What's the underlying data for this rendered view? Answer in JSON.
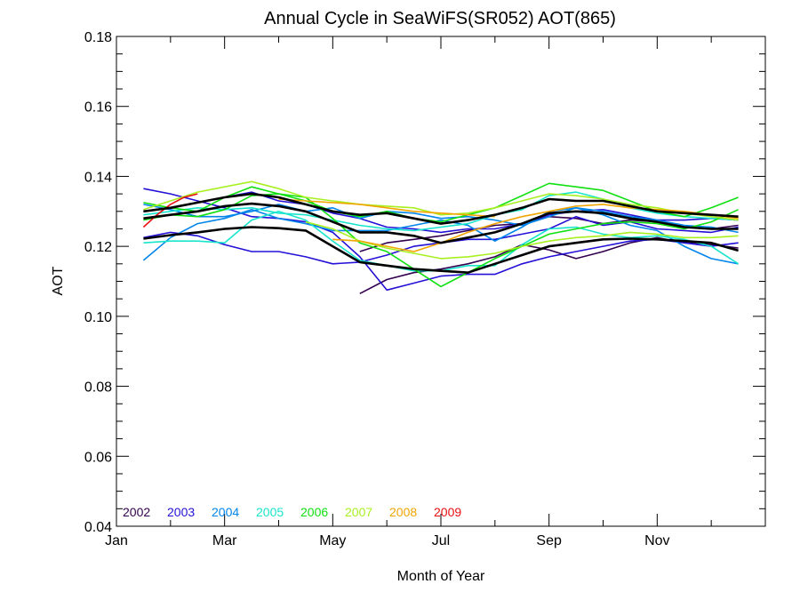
{
  "chart_data": {
    "type": "line",
    "title": "Annual Cycle in SeaWiFS(SR052) AOT(865)",
    "xlabel": "Month of Year",
    "ylabel": "AOT",
    "xlim": [
      1,
      13
    ],
    "ylim": [
      0.04,
      0.18
    ],
    "x_tick_labels": [
      {
        "value": 1,
        "label": "Jan"
      },
      {
        "value": 3,
        "label": "Mar"
      },
      {
        "value": 5,
        "label": "May"
      },
      {
        "value": 7,
        "label": "Jul"
      },
      {
        "value": 9,
        "label": "Sep"
      },
      {
        "value": 11,
        "label": "Nov"
      }
    ],
    "y_ticks": [
      0.04,
      0.06,
      0.08,
      0.1,
      0.12,
      0.14,
      0.16,
      0.18
    ],
    "y_tick_labels": [
      "0.04",
      "0.06",
      "0.08",
      "0.10",
      "0.12",
      "0.14",
      "0.16",
      "0.18"
    ],
    "legend_placement": "bottom-left",
    "series": [
      {
        "name": "2002",
        "color": "#330050",
        "lines": [
          {
            "x": [
              5.5,
              6.0,
              6.5,
              7.0,
              7.5,
              8.0,
              8.5,
              9.0,
              9.5,
              10.0,
              10.5,
              11.0,
              11.5,
              12.0,
              12.5
            ],
            "y": [
              0.1065,
              0.1105,
              0.1125,
              0.1135,
              0.115,
              0.117,
              0.1205,
              0.119,
              0.1165,
              0.1185,
              0.121,
              0.1225,
              0.121,
              0.1205,
              0.1195
            ]
          },
          {
            "x": [
              5.5,
              6.0,
              6.5,
              7.0,
              7.5,
              8.0,
              8.5,
              9.0,
              9.5,
              10.0,
              10.5,
              11.0,
              11.5,
              12.0,
              12.5
            ],
            "y": [
              0.1185,
              0.121,
              0.122,
              0.123,
              0.1245,
              0.126,
              0.1265,
              0.1285,
              0.128,
              0.1265,
              0.1275,
              0.127,
              0.1255,
              0.125,
              0.126
            ]
          }
        ]
      },
      {
        "name": "2003",
        "color": "#2410D6",
        "lines": [
          {
            "x": [
              1.5,
              2.0,
              2.5,
              3.0,
              3.5,
              4.0,
              4.5,
              5.0,
              5.5,
              6.0,
              6.5,
              7.0,
              7.5,
              8.0,
              8.5,
              9.0,
              9.5,
              10.0,
              10.5,
              11.0,
              11.5,
              12.0,
              12.5
            ],
            "y": [
              0.1365,
              0.135,
              0.133,
              0.131,
              0.1285,
              0.128,
              0.127,
              0.124,
              0.117,
              0.1075,
              0.1095,
              0.1115,
              0.112,
              0.112,
              0.115,
              0.117,
              0.1185,
              0.12,
              0.1215,
              0.122,
              0.121,
              0.12,
              0.121
            ]
          },
          {
            "x": [
              1.5,
              2.0,
              2.5,
              3.0,
              3.5,
              4.0,
              4.5,
              5.0,
              5.5,
              6.0,
              6.5,
              7.0,
              7.5,
              8.0,
              8.5,
              9.0,
              9.5,
              10.0,
              10.5,
              11.0,
              11.5,
              12.0,
              12.5
            ],
            "y": [
              0.1225,
              0.124,
              0.123,
              0.1205,
              0.1185,
              0.1185,
              0.117,
              0.115,
              0.1155,
              0.1175,
              0.12,
              0.121,
              0.122,
              0.122,
              0.1235,
              0.125,
              0.1285,
              0.126,
              0.127,
              0.125,
              0.1245,
              0.124,
              0.1255
            ]
          },
          {
            "x": [
              1.5,
              2.0,
              2.5,
              3.0,
              3.5,
              4.0,
              4.5,
              5.0,
              5.5,
              6.0,
              6.5,
              7.0,
              7.5,
              8.0,
              8.5,
              9.0,
              9.5,
              10.0,
              10.5,
              11.0,
              11.5,
              12.0,
              12.5
            ],
            "y": [
              0.13,
              0.131,
              0.1325,
              0.134,
              0.1355,
              0.133,
              0.132,
              0.1295,
              0.128,
              0.1255,
              0.125,
              0.124,
              0.125,
              0.125,
              0.1265,
              0.129,
              0.13,
              0.1305,
              0.129,
              0.1275,
              0.1275,
              0.128,
              0.1275
            ]
          }
        ]
      },
      {
        "name": "2004",
        "color": "#0085EA",
        "lines": [
          {
            "x": [
              1.5,
              2.0,
              2.5,
              3.0,
              3.5,
              4.0,
              4.5,
              5.0,
              5.5,
              6.0,
              6.5,
              7.0,
              7.5,
              8.0,
              8.5,
              9.0,
              9.5,
              10.0,
              10.5,
              11.0,
              11.5,
              12.0,
              12.5
            ],
            "y": [
              0.116,
              0.1225,
              0.1265,
              0.128,
              0.1305,
              0.128,
              0.1265,
              0.1245,
              0.1245,
              0.1245,
              0.126,
              0.1275,
              0.126,
              0.1215,
              0.1255,
              0.13,
              0.131,
              0.129,
              0.126,
              0.1245,
              0.12,
              0.1165,
              0.115
            ]
          },
          {
            "x": [
              1.5,
              2.0,
              2.5,
              3.0,
              3.5,
              4.0,
              4.5,
              5.0,
              5.5,
              6.0,
              6.5,
              7.0,
              7.5,
              8.0,
              8.5,
              9.0,
              9.5,
              10.0,
              10.5,
              11.0,
              11.5,
              12.0,
              12.5
            ],
            "y": [
              0.132,
              0.1305,
              0.1285,
              0.1285,
              0.13,
              0.132,
              0.13,
              0.131,
              0.128,
              0.13,
              0.1295,
              0.128,
              0.1285,
              0.1275,
              0.126,
              0.1285,
              0.131,
              0.13,
              0.1285,
              0.1275,
              0.126,
              0.1255,
              0.124
            ]
          }
        ]
      },
      {
        "name": "2005",
        "color": "#18E5CC",
        "lines": [
          {
            "x": [
              1.5,
              2.0,
              2.5,
              3.0,
              3.5,
              4.0,
              4.5,
              5.0,
              5.5,
              6.0,
              6.5,
              7.0,
              7.5,
              8.0,
              8.5,
              9.0,
              9.5,
              10.0,
              10.5,
              11.0,
              11.5,
              12.0,
              12.5
            ],
            "y": [
              0.121,
              0.1215,
              0.1215,
              0.121,
              0.1275,
              0.13,
              0.1275,
              0.1215,
              0.116,
              0.1145,
              0.113,
              0.113,
              0.1145,
              0.1145,
              0.1205,
              0.125,
              0.1255,
              0.1235,
              0.1225,
              0.123,
              0.122,
              0.12,
              0.115
            ]
          },
          {
            "x": [
              1.5,
              2.0,
              2.5,
              3.0,
              3.5,
              4.0,
              4.5,
              5.0,
              5.5,
              6.0,
              6.5,
              7.0,
              7.5,
              8.0,
              8.5,
              9.0,
              9.5,
              10.0,
              10.5,
              11.0,
              11.5,
              12.0,
              12.5
            ],
            "y": [
              0.129,
              0.13,
              0.131,
              0.1305,
              0.131,
              0.1295,
              0.129,
              0.1275,
              0.126,
              0.125,
              0.1245,
              0.1255,
              0.1265,
              0.129,
              0.1305,
              0.1345,
              0.1355,
              0.1335,
              0.131,
              0.1295,
              0.1285,
              0.128,
              0.1275
            ]
          }
        ]
      },
      {
        "name": "2006",
        "color": "#10E010",
        "lines": [
          {
            "x": [
              1.5,
              2.0,
              2.5,
              3.0,
              3.5,
              4.0,
              4.5,
              5.0,
              5.5,
              6.0,
              6.5,
              7.0,
              7.5,
              8.0,
              8.5,
              9.0,
              9.5,
              10.0,
              10.5,
              11.0,
              11.5,
              12.0,
              12.5
            ],
            "y": [
              0.1275,
              0.129,
              0.1285,
              0.1305,
              0.1345,
              0.135,
              0.134,
              0.128,
              0.121,
              0.1185,
              0.1135,
              0.1085,
              0.1125,
              0.1165,
              0.12,
              0.1235,
              0.125,
              0.1265,
              0.127,
              0.1265,
              0.125,
              0.127,
              0.1305
            ]
          },
          {
            "x": [
              1.5,
              2.0,
              2.5,
              3.0,
              3.5,
              4.0,
              4.5,
              5.0,
              5.5,
              6.0,
              6.5,
              7.0,
              7.5,
              8.0,
              8.5,
              9.0,
              9.5,
              10.0,
              10.5,
              11.0,
              11.5,
              12.0,
              12.5
            ],
            "y": [
              0.1325,
              0.131,
              0.13,
              0.134,
              0.137,
              0.135,
              0.133,
              0.13,
              0.1285,
              0.13,
              0.128,
              0.127,
              0.129,
              0.131,
              0.1345,
              0.138,
              0.137,
              0.136,
              0.133,
              0.13,
              0.1285,
              0.131,
              0.134
            ]
          }
        ]
      },
      {
        "name": "2007",
        "color": "#A8F020",
        "lines": [
          {
            "x": [
              1.5,
              2.0,
              2.5,
              3.0,
              3.5,
              4.0,
              4.5,
              5.0,
              5.5,
              6.0,
              6.5,
              7.0,
              7.5,
              8.0,
              8.5,
              9.0,
              9.5,
              10.0,
              10.5,
              11.0,
              11.5,
              12.0,
              12.5
            ],
            "y": [
              0.1305,
              0.133,
              0.1355,
              0.137,
              0.1385,
              0.1365,
              0.134,
              0.133,
              0.132,
              0.1315,
              0.131,
              0.129,
              0.1295,
              0.131,
              0.133,
              0.135,
              0.1345,
              0.1335,
              0.132,
              0.131,
              0.1295,
              0.1285,
              0.1275
            ]
          },
          {
            "x": [
              4.5,
              5.0,
              5.5,
              6.0,
              6.5,
              7.0,
              7.5,
              8.0,
              8.5,
              9.0,
              9.5,
              10.0,
              10.5,
              11.0,
              11.5,
              12.0,
              12.5
            ],
            "y": [
              0.127,
              0.125,
              0.1215,
              0.1195,
              0.118,
              0.1165,
              0.117,
              0.118,
              0.12,
              0.1215,
              0.1225,
              0.123,
              0.124,
              0.1235,
              0.1225,
              0.1225,
              0.123
            ]
          }
        ]
      },
      {
        "name": "2008",
        "color": "#F0A500",
        "lines": [
          {
            "x": [
              5.0,
              5.5,
              6.0,
              6.5,
              7.0,
              7.5,
              8.0,
              8.5,
              9.0,
              9.5,
              10.0,
              10.5,
              11.0,
              11.5,
              12.0,
              12.5
            ],
            "y": [
              0.122,
              0.1215,
              0.12,
              0.1185,
              0.121,
              0.124,
              0.1265,
              0.1285,
              0.13,
              0.1315,
              0.132,
              0.131,
              0.1305,
              0.13,
              0.129,
              0.128
            ]
          },
          {
            "x": [
              4.0,
              4.5,
              5.0,
              5.5,
              6.0,
              6.5,
              7.0,
              7.5,
              8.0
            ],
            "y": [
              0.1335,
              0.133,
              0.1325,
              0.132,
              0.131,
              0.13,
              0.1295,
              0.129,
              0.1285
            ]
          }
        ]
      },
      {
        "name": "2009",
        "color": "#EA1010",
        "lines": [
          {
            "x": [
              1.5,
              1.75,
              2.0,
              2.25,
              2.5
            ],
            "y": [
              0.1255,
              0.129,
              0.132,
              0.134,
              0.135
            ]
          }
        ]
      },
      {
        "color": "#000000",
        "lines": [
          {
            "x": [
              1.5,
              2.0,
              2.5,
              3.0,
              3.5,
              4.0,
              4.5,
              5.0,
              5.5,
              6.0,
              6.5,
              7.0,
              7.5,
              8.0,
              8.5,
              9.0,
              9.5,
              10.0,
              10.5,
              11.0,
              11.5,
              12.0,
              12.5
            ],
            "y": [
              0.1222,
              0.1232,
              0.124,
              0.125,
              0.1255,
              0.1252,
              0.1245,
              0.12,
              0.1155,
              0.1145,
              0.1135,
              0.113,
              0.1125,
              0.115,
              0.1175,
              0.12,
              0.121,
              0.122,
              0.1222,
              0.122,
              0.1215,
              0.121,
              0.1188
            ]
          },
          {
            "x": [
              1.5,
              2.0,
              2.5,
              3.0,
              3.5,
              4.0,
              4.5,
              5.0,
              5.5,
              6.0,
              6.5,
              7.0,
              7.5,
              8.0,
              8.5,
              9.0,
              9.5,
              10.0,
              10.5,
              11.0,
              11.5,
              12.0,
              12.5
            ],
            "y": [
              0.128,
              0.129,
              0.13,
              0.1315,
              0.1322,
              0.1315,
              0.13,
              0.127,
              0.124,
              0.124,
              0.123,
              0.121,
              0.1225,
              0.124,
              0.1265,
              0.1295,
              0.13,
              0.1295,
              0.128,
              0.127,
              0.1255,
              0.125,
              0.125
            ]
          },
          {
            "x": [
              1.5,
              2.0,
              2.5,
              3.0,
              3.5,
              4.0,
              4.5,
              5.0,
              5.5,
              6.0,
              6.5,
              7.0,
              7.5,
              8.0,
              8.5,
              9.0,
              9.5,
              10.0,
              10.5,
              11.0,
              11.5,
              12.0,
              12.5
            ],
            "y": [
              0.13,
              0.131,
              0.1325,
              0.134,
              0.135,
              0.134,
              0.132,
              0.13,
              0.129,
              0.1295,
              0.128,
              0.1265,
              0.1275,
              0.129,
              0.131,
              0.1335,
              0.133,
              0.133,
              0.1315,
              0.13,
              0.1295,
              0.129,
              0.1285
            ]
          }
        ]
      }
    ]
  }
}
